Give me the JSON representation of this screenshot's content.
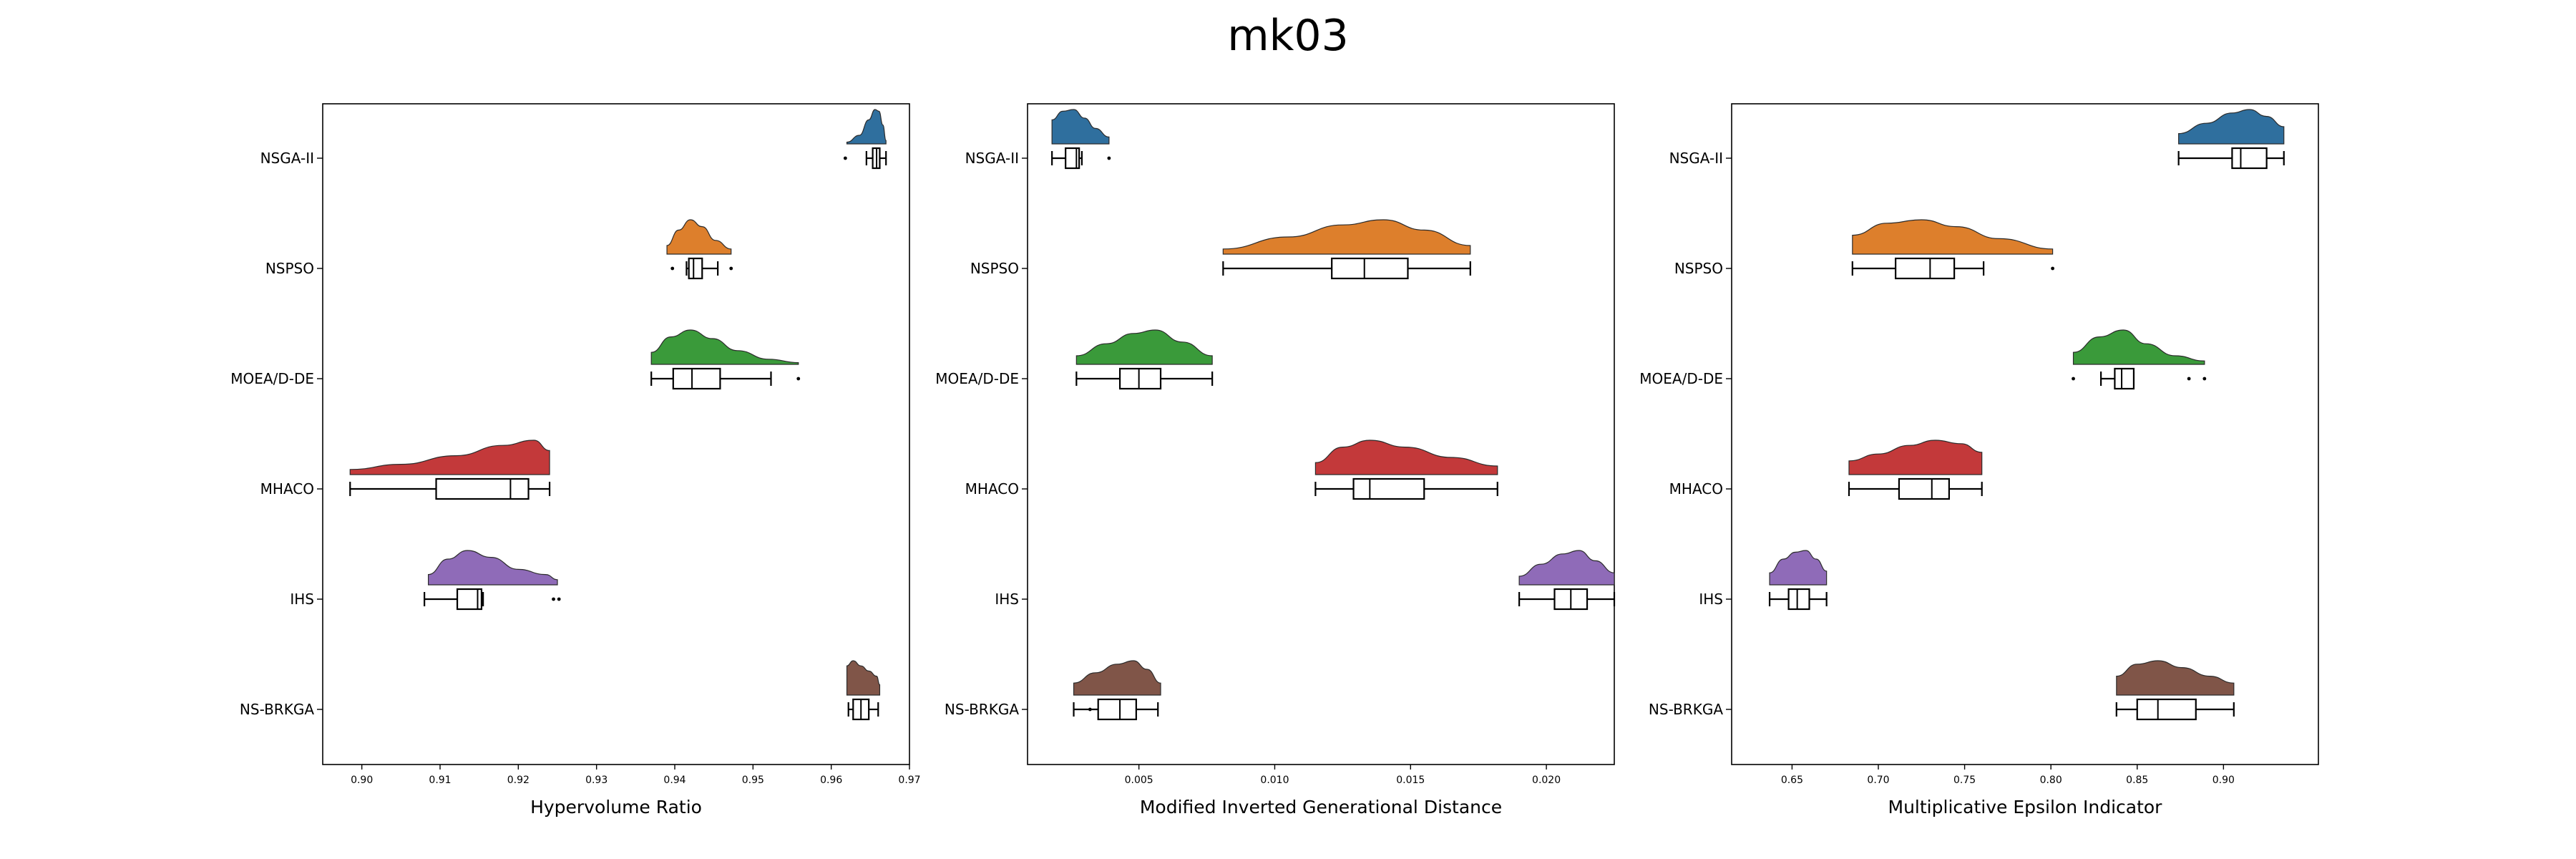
{
  "title": "mk03",
  "colors": {
    "NSGA-II": "#2f6f9e",
    "NSPSO": "#dd7f2c",
    "MOEA/D-DE": "#3a9a3a",
    "MHACO": "#c3393a",
    "IHS": "#8f6bb8",
    "NS-BRKGA": "#805548"
  },
  "chart_data": [
    {
      "type": "raincloud",
      "xlabel": "Hypervolume Ratio",
      "xlim": [
        0.895,
        0.97
      ],
      "xticks": [
        0.9,
        0.91,
        0.92,
        0.93,
        0.94,
        0.95,
        0.96,
        0.97
      ],
      "tick_labels": [
        "0.90",
        "0.91",
        "0.92",
        "0.93",
        "0.94",
        "0.95",
        "0.96",
        "0.97"
      ],
      "categories": [
        "NSGA-II",
        "NSPSO",
        "MOEA/D-DE",
        "MHACO",
        "IHS",
        "NS-BRKGA"
      ],
      "series": [
        {
          "name": "NSGA-II",
          "min": 0.9645,
          "q1": 0.9653,
          "median": 0.9658,
          "q3": 0.9662,
          "max": 0.967,
          "outliers": [
            0.9618
          ],
          "kde": [
            0.962,
            0.9636,
            0.9648,
            0.9656,
            0.9661,
            0.9666,
            0.967
          ],
          "dens": [
            0.05,
            0.25,
            0.7,
            1.0,
            0.95,
            0.55,
            0.1
          ]
        },
        {
          "name": "NSPSO",
          "min": 0.9415,
          "q1": 0.9418,
          "median": 0.9424,
          "q3": 0.9435,
          "max": 0.9455,
          "outliers": [
            0.9397,
            0.9472
          ],
          "kde": [
            0.939,
            0.9405,
            0.942,
            0.9435,
            0.9452,
            0.9472
          ],
          "dens": [
            0.25,
            0.7,
            1.0,
            0.8,
            0.4,
            0.15
          ]
        },
        {
          "name": "MOEA/D-DE",
          "min": 0.937,
          "q1": 0.9398,
          "median": 0.9422,
          "q3": 0.9458,
          "max": 0.9523,
          "outliers": [
            0.9558
          ],
          "kde": [
            0.937,
            0.9395,
            0.942,
            0.9448,
            0.948,
            0.952,
            0.9558
          ],
          "dens": [
            0.35,
            0.8,
            1.0,
            0.75,
            0.4,
            0.15,
            0.05
          ]
        },
        {
          "name": "MHACO",
          "min": 0.8985,
          "q1": 0.9095,
          "median": 0.919,
          "q3": 0.9213,
          "max": 0.924,
          "outliers": [],
          "kde": [
            0.8985,
            0.905,
            0.912,
            0.918,
            0.922,
            0.924
          ],
          "dens": [
            0.15,
            0.3,
            0.55,
            0.85,
            1.0,
            0.7
          ]
        },
        {
          "name": "IHS",
          "min": 0.908,
          "q1": 0.9122,
          "median": 0.9148,
          "q3": 0.9153,
          "max": 0.9155,
          "outliers": [
            0.9245,
            0.9252
          ],
          "kde": [
            0.9085,
            0.911,
            0.9135,
            0.9165,
            0.92,
            0.9235,
            0.925
          ],
          "dens": [
            0.3,
            0.75,
            1.0,
            0.8,
            0.45,
            0.3,
            0.15
          ]
        },
        {
          "name": "NS-BRKGA",
          "min": 0.9622,
          "q1": 0.9628,
          "median": 0.9638,
          "q3": 0.9648,
          "max": 0.966,
          "outliers": [],
          "kde": [
            0.962,
            0.9628,
            0.9638,
            0.9648,
            0.9658,
            0.9662
          ],
          "dens": [
            0.85,
            1.0,
            0.85,
            0.7,
            0.55,
            0.3
          ]
        }
      ]
    },
    {
      "type": "raincloud",
      "xlabel": "Modified Inverted Generational Distance",
      "xlim": [
        0.0009,
        0.0225
      ],
      "xticks": [
        0.005,
        0.01,
        0.015,
        0.02
      ],
      "tick_labels": [
        "0.005",
        "0.010",
        "0.015",
        "0.020"
      ],
      "categories": [
        "NSGA-II",
        "NSPSO",
        "MOEA/D-DE",
        "MHACO",
        "IHS",
        "NS-BRKGA"
      ],
      "series": [
        {
          "name": "NSGA-II",
          "min": 0.0018,
          "q1": 0.0023,
          "median": 0.0027,
          "q3": 0.0028,
          "max": 0.0029,
          "outliers": [
            0.0039
          ],
          "kde": [
            0.0018,
            0.0022,
            0.0026,
            0.003,
            0.0034,
            0.0039
          ],
          "dens": [
            0.7,
            0.95,
            1.0,
            0.75,
            0.45,
            0.2
          ]
        },
        {
          "name": "NSPSO",
          "min": 0.0081,
          "q1": 0.0121,
          "median": 0.0133,
          "q3": 0.0149,
          "max": 0.0172,
          "outliers": [],
          "kde": [
            0.0081,
            0.0105,
            0.0125,
            0.014,
            0.0155,
            0.0172
          ],
          "dens": [
            0.15,
            0.5,
            0.85,
            1.0,
            0.7,
            0.25
          ]
        },
        {
          "name": "MOEA/D-DE",
          "min": 0.0027,
          "q1": 0.0043,
          "median": 0.005,
          "q3": 0.0058,
          "max": 0.0077,
          "outliers": [],
          "kde": [
            0.0027,
            0.0038,
            0.0048,
            0.0056,
            0.0066,
            0.0077
          ],
          "dens": [
            0.25,
            0.6,
            0.9,
            1.0,
            0.65,
            0.25
          ]
        },
        {
          "name": "MHACO",
          "min": 0.0115,
          "q1": 0.0129,
          "median": 0.0135,
          "q3": 0.0155,
          "max": 0.0182,
          "outliers": [],
          "kde": [
            0.0115,
            0.0125,
            0.0135,
            0.0148,
            0.0165,
            0.0182
          ],
          "dens": [
            0.35,
            0.8,
            1.0,
            0.8,
            0.5,
            0.25
          ]
        },
        {
          "name": "IHS",
          "min": 0.019,
          "q1": 0.0203,
          "median": 0.0209,
          "q3": 0.0215,
          "max": 0.0225,
          "outliers": [],
          "kde": [
            0.019,
            0.0198,
            0.0206,
            0.0212,
            0.0218,
            0.0225
          ],
          "dens": [
            0.25,
            0.6,
            0.9,
            1.0,
            0.7,
            0.35
          ]
        },
        {
          "name": "NS-BRKGA",
          "min": 0.0026,
          "q1": 0.0035,
          "median": 0.0043,
          "q3": 0.0049,
          "max": 0.0057,
          "outliers": [
            0.0032
          ],
          "kde": [
            0.0026,
            0.0034,
            0.0042,
            0.0048,
            0.0053,
            0.0058
          ],
          "dens": [
            0.35,
            0.65,
            0.9,
            1.0,
            0.75,
            0.35
          ]
        }
      ]
    },
    {
      "type": "raincloud",
      "xlabel": "Multiplicative Epsilon Indicator",
      "xlim": [
        0.615,
        0.955
      ],
      "xticks": [
        0.65,
        0.7,
        0.75,
        0.8,
        0.85,
        0.9
      ],
      "tick_labels": [
        "0.65",
        "0.70",
        "0.75",
        "0.80",
        "0.85",
        "0.90"
      ],
      "categories": [
        "NSGA-II",
        "NSPSO",
        "MOEA/D-DE",
        "MHACO",
        "IHS",
        "NS-BRKGA"
      ],
      "series": [
        {
          "name": "NSGA-II",
          "min": 0.874,
          "q1": 0.905,
          "median": 0.91,
          "q3": 0.925,
          "max": 0.935,
          "outliers": [],
          "kde": [
            0.874,
            0.89,
            0.905,
            0.915,
            0.925,
            0.935
          ],
          "dens": [
            0.3,
            0.6,
            0.9,
            1.0,
            0.8,
            0.5
          ]
        },
        {
          "name": "NSPSO",
          "min": 0.685,
          "q1": 0.71,
          "median": 0.73,
          "q3": 0.744,
          "max": 0.761,
          "outliers": [
            0.801
          ],
          "kde": [
            0.685,
            0.705,
            0.725,
            0.745,
            0.77,
            0.801
          ],
          "dens": [
            0.55,
            0.9,
            1.0,
            0.8,
            0.45,
            0.15
          ]
        },
        {
          "name": "MOEA/D-DE",
          "min": 0.829,
          "q1": 0.837,
          "median": 0.841,
          "q3": 0.848,
          "max": 0.848,
          "outliers": [
            0.813,
            0.88,
            0.889
          ],
          "kde": [
            0.813,
            0.828,
            0.842,
            0.855,
            0.872,
            0.889
          ],
          "dens": [
            0.35,
            0.8,
            1.0,
            0.6,
            0.25,
            0.1
          ]
        },
        {
          "name": "MHACO",
          "min": 0.683,
          "q1": 0.712,
          "median": 0.731,
          "q3": 0.741,
          "max": 0.76,
          "outliers": [],
          "kde": [
            0.683,
            0.7,
            0.718,
            0.733,
            0.748,
            0.76
          ],
          "dens": [
            0.4,
            0.6,
            0.85,
            1.0,
            0.9,
            0.65
          ]
        },
        {
          "name": "IHS",
          "min": 0.637,
          "q1": 0.648,
          "median": 0.653,
          "q3": 0.66,
          "max": 0.67,
          "outliers": [],
          "kde": [
            0.637,
            0.645,
            0.652,
            0.658,
            0.664,
            0.67
          ],
          "dens": [
            0.35,
            0.75,
            0.95,
            1.0,
            0.75,
            0.4
          ]
        },
        {
          "name": "NS-BRKGA",
          "min": 0.838,
          "q1": 0.85,
          "median": 0.862,
          "q3": 0.884,
          "max": 0.906,
          "outliers": [],
          "kde": [
            0.838,
            0.85,
            0.862,
            0.876,
            0.892,
            0.906
          ],
          "dens": [
            0.55,
            0.9,
            1.0,
            0.8,
            0.55,
            0.35
          ]
        }
      ]
    }
  ]
}
